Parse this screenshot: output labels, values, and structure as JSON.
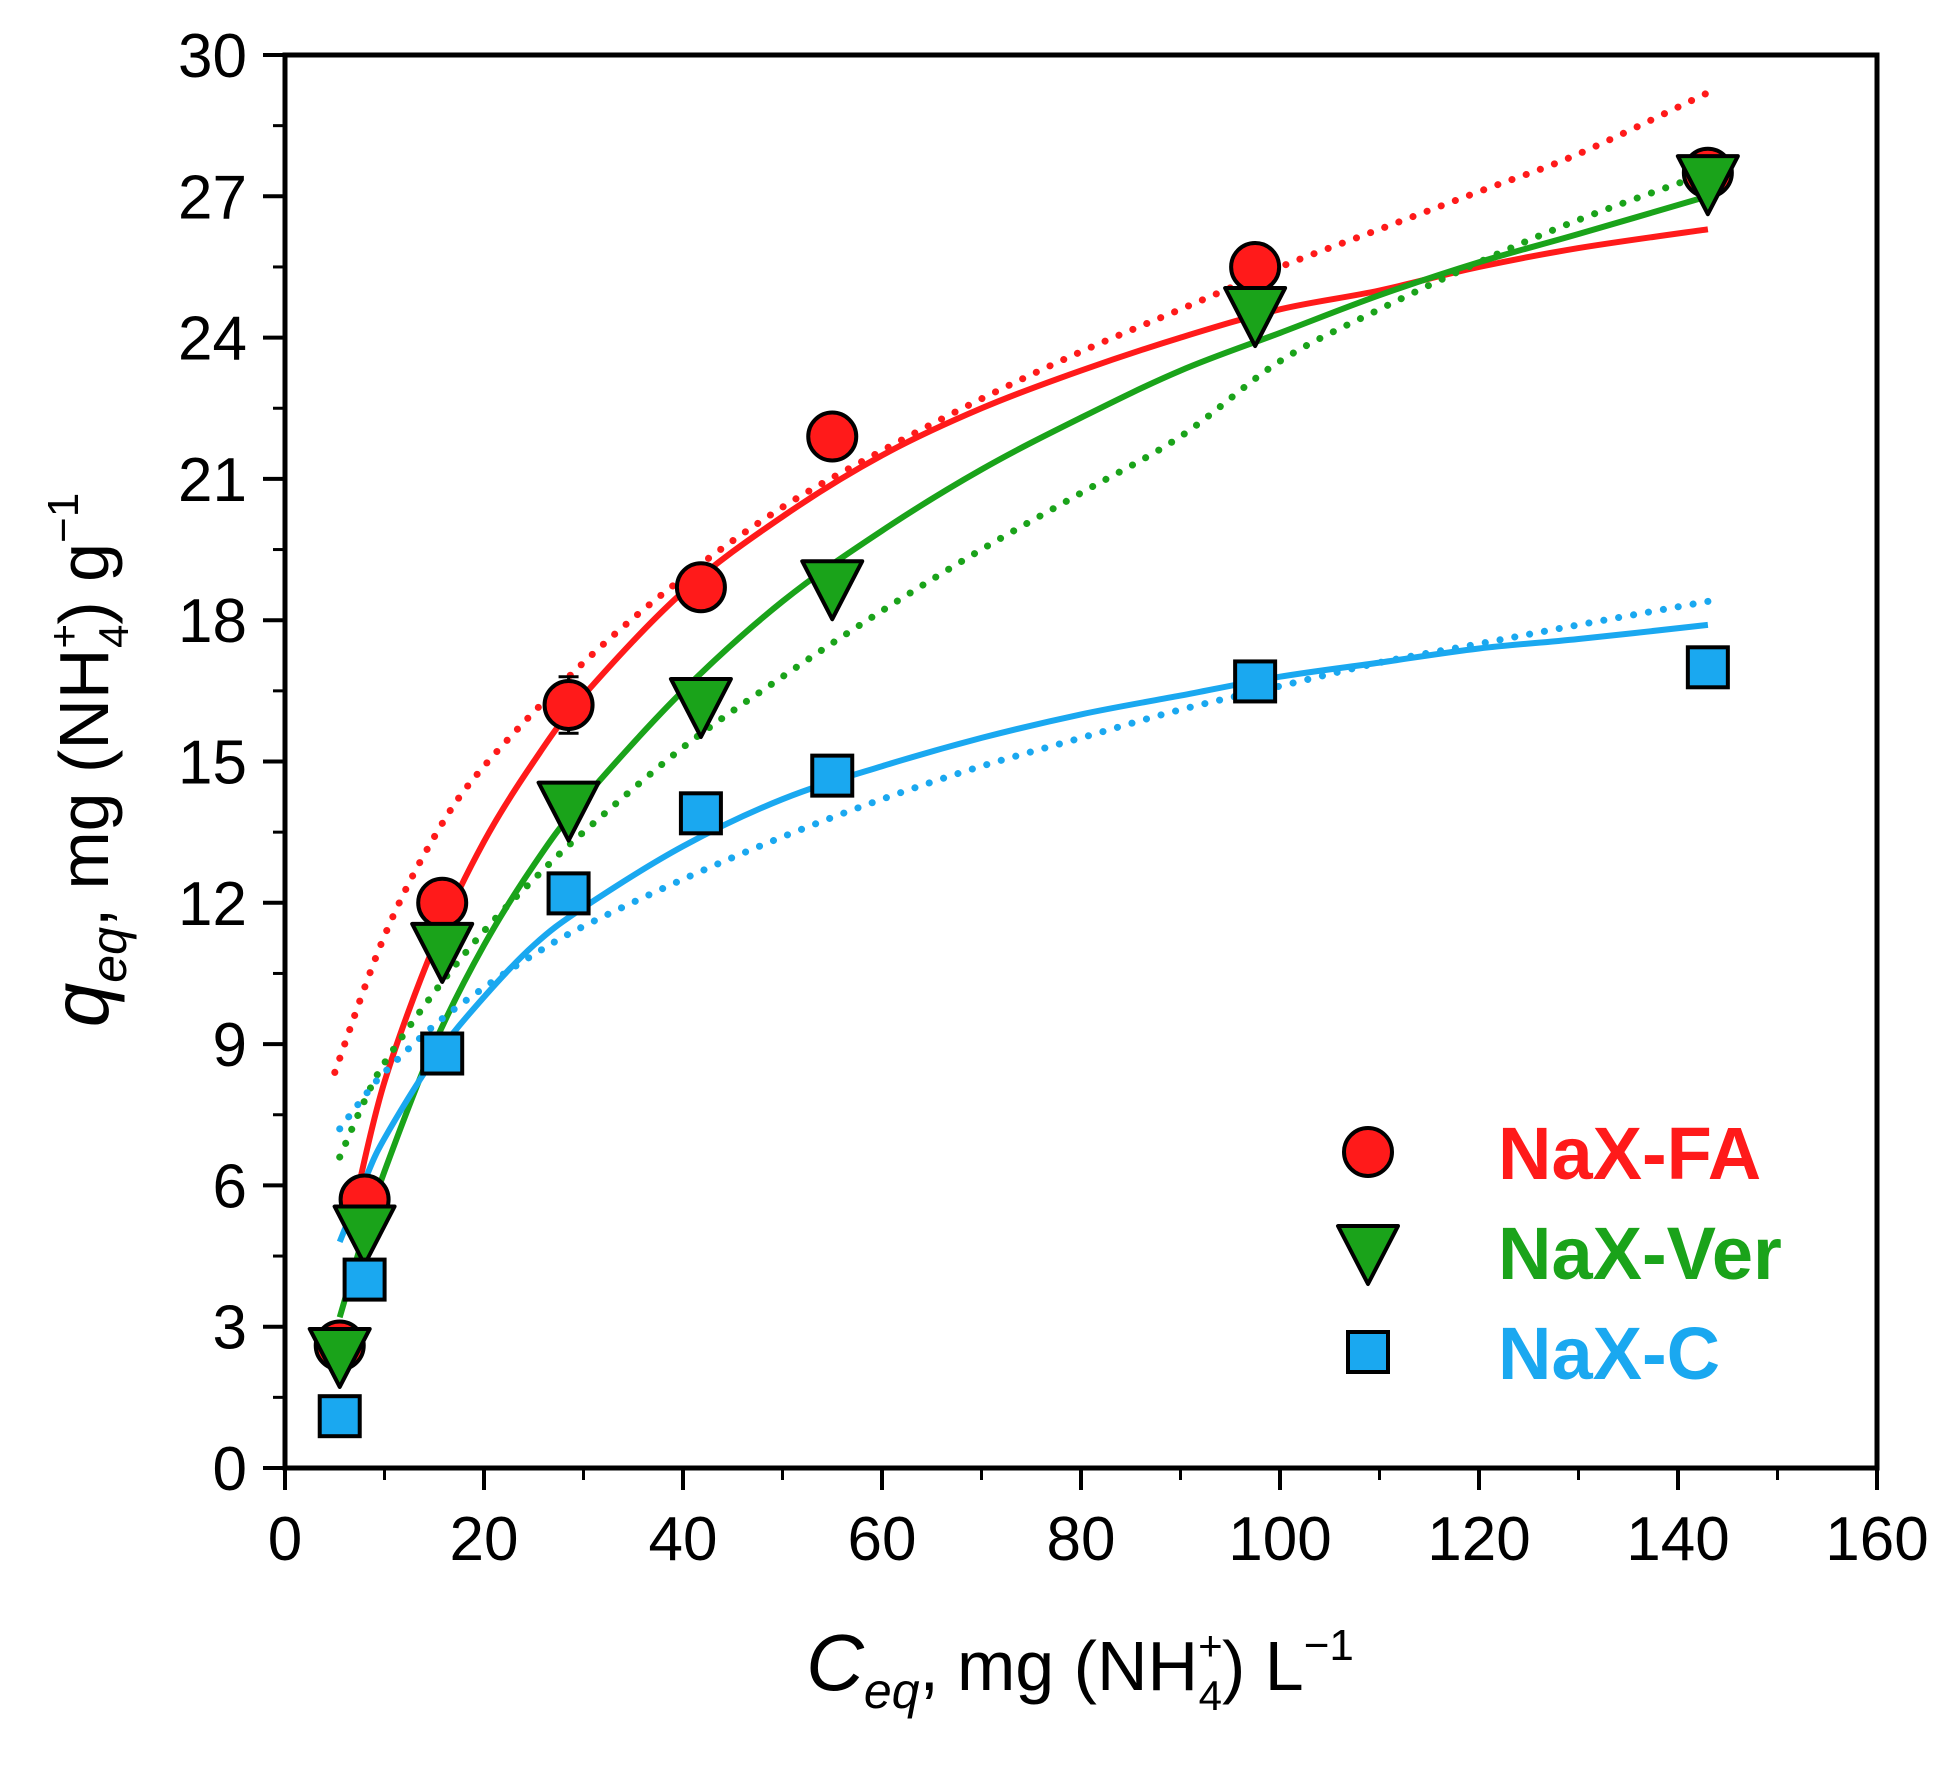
{
  "chart_data": {
    "type": "scatter",
    "title": "",
    "xlabel": {
      "symbol": "C",
      "subscript": "eq",
      "separator": ",",
      "unit_prefix": "mg (NH",
      "ion_sub": "4",
      "ion_sup": "+",
      "unit_suffix": ") L",
      "unit_exp": "−1"
    },
    "ylabel": {
      "symbol": "q",
      "subscript": "eq",
      "separator": ",",
      "unit_prefix": "mg (NH",
      "ion_sub": "4",
      "ion_sup": "+",
      "unit_suffix": ") g",
      "unit_exp": "−1"
    },
    "xlim": [
      0,
      160
    ],
    "ylim": [
      0,
      30
    ],
    "xticks": [
      0,
      20,
      40,
      60,
      80,
      100,
      120,
      140,
      160
    ],
    "yticks": [
      0,
      3,
      6,
      9,
      12,
      15,
      18,
      21,
      24,
      27,
      30
    ],
    "x_tick_labels": [
      "0",
      "20",
      "40",
      "60",
      "80",
      "100",
      "120",
      "140",
      "160"
    ],
    "y_tick_labels": [
      "0",
      "3",
      "6",
      "9",
      "12",
      "15",
      "18",
      "21",
      "24",
      "27",
      "30"
    ],
    "x_minor_step": 10,
    "y_minor_step": 1.5,
    "grid": false,
    "legend_position": "bottom-right",
    "series": [
      {
        "name": "NaX-FA",
        "marker": "circle",
        "color": "#ff1a1a",
        "label_color": "#ff1a1a",
        "x": [
          5.5,
          8,
          15.8,
          28.5,
          41.8,
          55,
          97.5,
          143
        ],
        "y": [
          2.6,
          5.7,
          12.0,
          16.2,
          18.7,
          21.9,
          25.5,
          27.5
        ],
        "err": [
          0.2,
          0.4,
          0.3,
          0.6,
          0.3,
          0.3,
          0.3,
          0.2
        ],
        "fit_solid": {
          "x": [
            7,
            10,
            15,
            20,
            25,
            30,
            40,
            50,
            60,
            70,
            80,
            90,
            100,
            110,
            120,
            130,
            143
          ],
          "y": [
            5.6,
            8.2,
            11.1,
            13.3,
            15.0,
            16.4,
            18.6,
            20.2,
            21.5,
            22.5,
            23.3,
            24.0,
            24.6,
            25.0,
            25.5,
            25.9,
            26.3
          ]
        },
        "fit_dotted": {
          "x": [
            5,
            10,
            15,
            20,
            30,
            40,
            50,
            60,
            70,
            80,
            90,
            100,
            110,
            120,
            130,
            143
          ],
          "y": [
            8.4,
            11.3,
            13.4,
            14.9,
            17.1,
            18.9,
            20.4,
            21.6,
            22.7,
            23.7,
            24.6,
            25.5,
            26.3,
            27.1,
            27.9,
            29.2
          ]
        }
      },
      {
        "name": "NaX-Ver",
        "marker": "triangle-down",
        "color": "#1aa31a",
        "label_color": "#1aa31a",
        "x": [
          5.5,
          8,
          15.8,
          28.5,
          41.8,
          55,
          97.5,
          143
        ],
        "y": [
          2.4,
          5.0,
          11.0,
          14.0,
          16.2,
          18.7,
          24.5,
          27.3
        ],
        "err": [
          0.2,
          0.2,
          0.3,
          0.3,
          0.3,
          0.3,
          0.3,
          0.3
        ],
        "fit_solid": {
          "x": [
            5.5,
            8,
            10,
            15,
            20,
            25,
            30,
            40,
            50,
            60,
            70,
            80,
            90,
            100,
            110,
            120,
            130,
            143
          ],
          "y": [
            3.2,
            5.0,
            6.3,
            9.0,
            11.1,
            12.8,
            14.2,
            16.5,
            18.4,
            19.9,
            21.2,
            22.3,
            23.3,
            24.1,
            24.9,
            25.6,
            26.2,
            27.0
          ]
        },
        "fit_dotted": {
          "x": [
            5.5,
            8,
            10,
            15,
            20,
            25,
            30,
            40,
            50,
            60,
            70,
            80,
            90,
            100,
            110,
            120,
            130,
            143
          ],
          "y": [
            6.6,
            7.8,
            8.6,
            10.1,
            11.4,
            12.5,
            13.5,
            15.3,
            16.8,
            18.2,
            19.5,
            20.7,
            21.9,
            23.5,
            24.6,
            25.6,
            26.5,
            27.5
          ]
        }
      },
      {
        "name": "NaX-C",
        "marker": "square",
        "color": "#1aa8f0",
        "label_color": "#1aa8f0",
        "x": [
          5.5,
          8,
          15.8,
          28.5,
          41.8,
          55,
          97.5,
          143
        ],
        "y": [
          1.1,
          4.0,
          8.8,
          12.2,
          13.9,
          14.7,
          16.7,
          17.0
        ],
        "err": [
          0.15,
          0.15,
          0.3,
          0.3,
          0.25,
          0.3,
          0.2,
          0.15
        ],
        "fit_solid": {
          "x": [
            5.5,
            8,
            10,
            15,
            20,
            25,
            30,
            40,
            50,
            60,
            70,
            80,
            90,
            100,
            110,
            120,
            130,
            143
          ],
          "y": [
            4.8,
            6.1,
            7.0,
            8.7,
            10.0,
            11.1,
            11.9,
            13.2,
            14.2,
            14.9,
            15.5,
            16.0,
            16.4,
            16.8,
            17.1,
            17.4,
            17.6,
            17.9
          ]
        },
        "fit_dotted": {
          "x": [
            5.5,
            8,
            10,
            15,
            20,
            25,
            30,
            40,
            50,
            60,
            70,
            80,
            90,
            100,
            110,
            120,
            130,
            143
          ],
          "y": [
            7.2,
            7.9,
            8.4,
            9.4,
            10.2,
            10.9,
            11.5,
            12.5,
            13.4,
            14.2,
            14.9,
            15.5,
            16.1,
            16.6,
            17.1,
            17.5,
            17.9,
            18.4
          ]
        }
      }
    ]
  }
}
